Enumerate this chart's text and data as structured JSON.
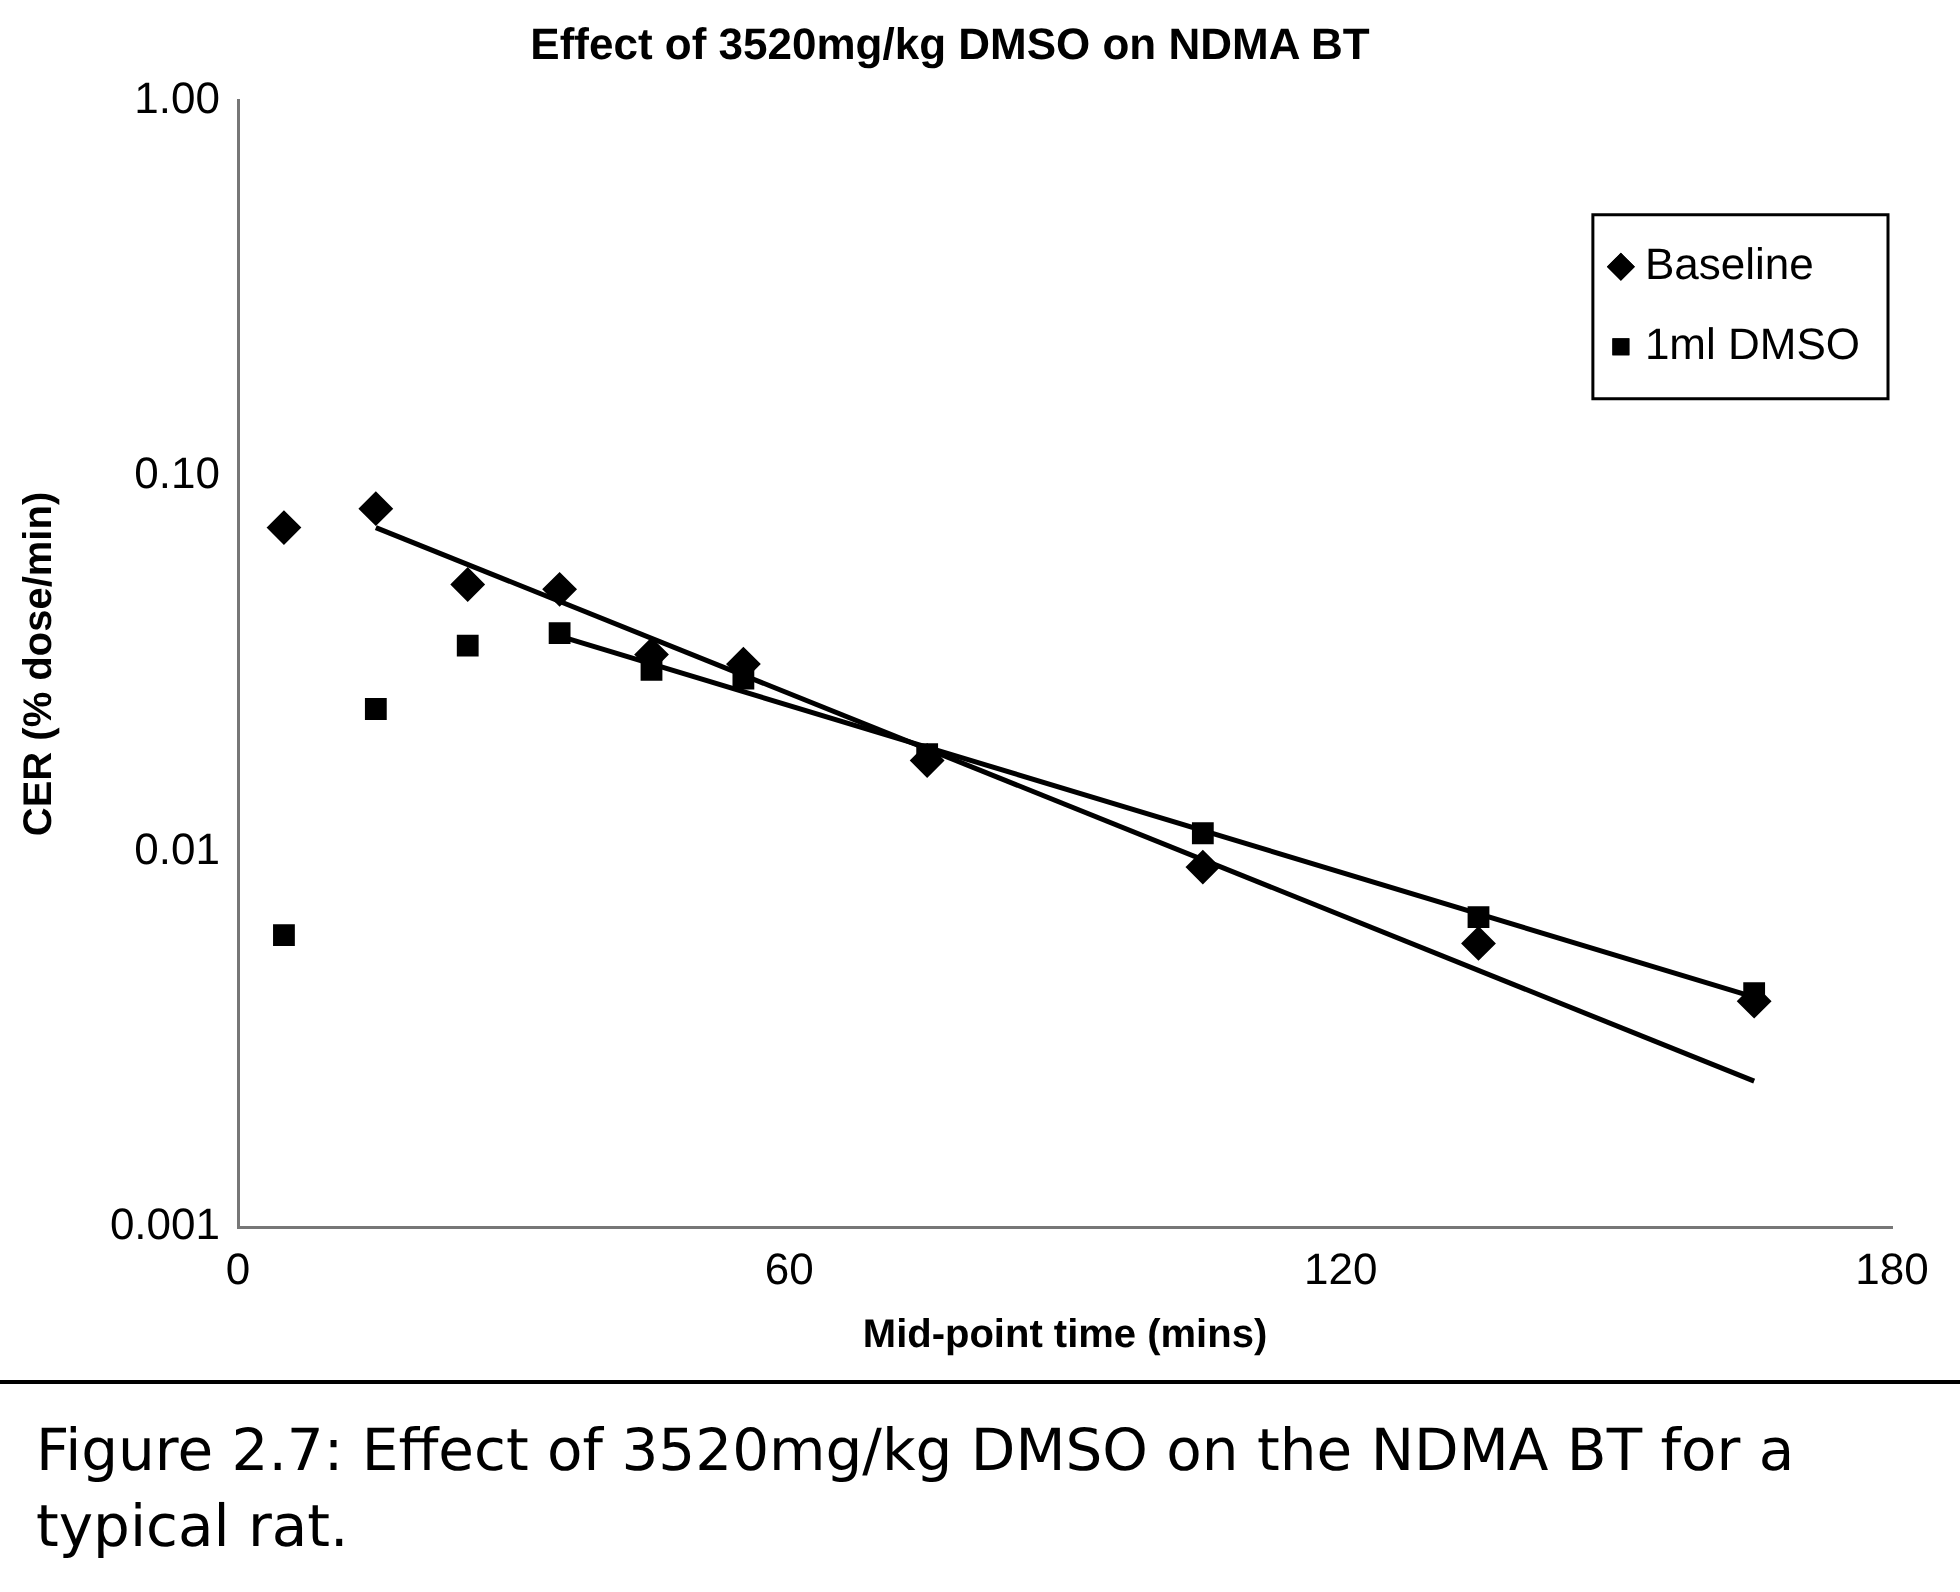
{
  "chart_data": {
    "type": "scatter",
    "title": "Effect of 3520mg/kg DMSO on NDMA BT",
    "xlabel": "Mid-point time (mins)",
    "ylabel": "CER (% dose/min)",
    "x": [
      5,
      15,
      25,
      35,
      45,
      55,
      75,
      105,
      135,
      165
    ],
    "series": [
      {
        "name": "Baseline",
        "color": "#000000",
        "marker": "diamond",
        "values": [
          0.073,
          0.082,
          0.0515,
          0.05,
          0.0335,
          0.0316,
          0.0175,
          0.0091,
          0.0057,
          0.004
        ]
      },
      {
        "name": "1ml DMSO",
        "color": "#000000",
        "marker": "square",
        "values": [
          0.006,
          0.024,
          0.0354,
          0.0382,
          0.0305,
          0.0289,
          0.0182,
          0.0112,
          0.0067,
          0.0042
        ]
      },
      {
        "type": "line",
        "color": "#000000",
        "marker": "none",
        "x": [
          15,
          165
        ],
        "values": [
          0.073,
          0.00245
        ]
      },
      {
        "type": "line",
        "color": "#000000",
        "marker": "none",
        "x": [
          35,
          165
        ],
        "values": [
          0.0375,
          0.0041
        ]
      }
    ],
    "xlim": [
      0,
      180
    ],
    "xticks": [
      0,
      60,
      120,
      180
    ],
    "ylim": [
      0.001,
      1
    ],
    "yticks": [
      {
        "value": 1,
        "label": "1.00"
      },
      {
        "value": 0.1,
        "label": "0.10"
      },
      0.01,
      0.001
    ],
    "log": "y",
    "grid": false,
    "legend": "top right",
    "annotations": [
      "Figure 2.7: Effect of 3520mg/kg DMSO on the NDMA BT for a typical rat."
    ]
  }
}
